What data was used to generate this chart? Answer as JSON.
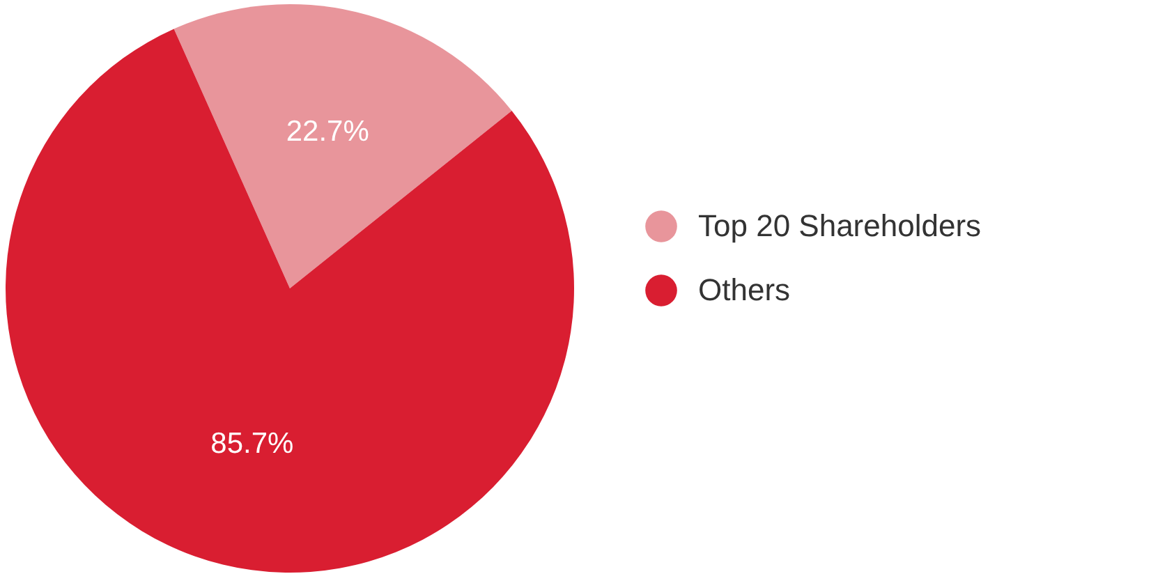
{
  "chart_data": {
    "type": "pie",
    "categories": [
      "Top 20 Shareholders",
      "Others"
    ],
    "values": [
      22.7,
      85.7
    ],
    "value_labels": [
      "22.7%",
      "85.7%"
    ],
    "colors": [
      "#e8959b",
      "#d91e31"
    ],
    "legend": "right"
  }
}
